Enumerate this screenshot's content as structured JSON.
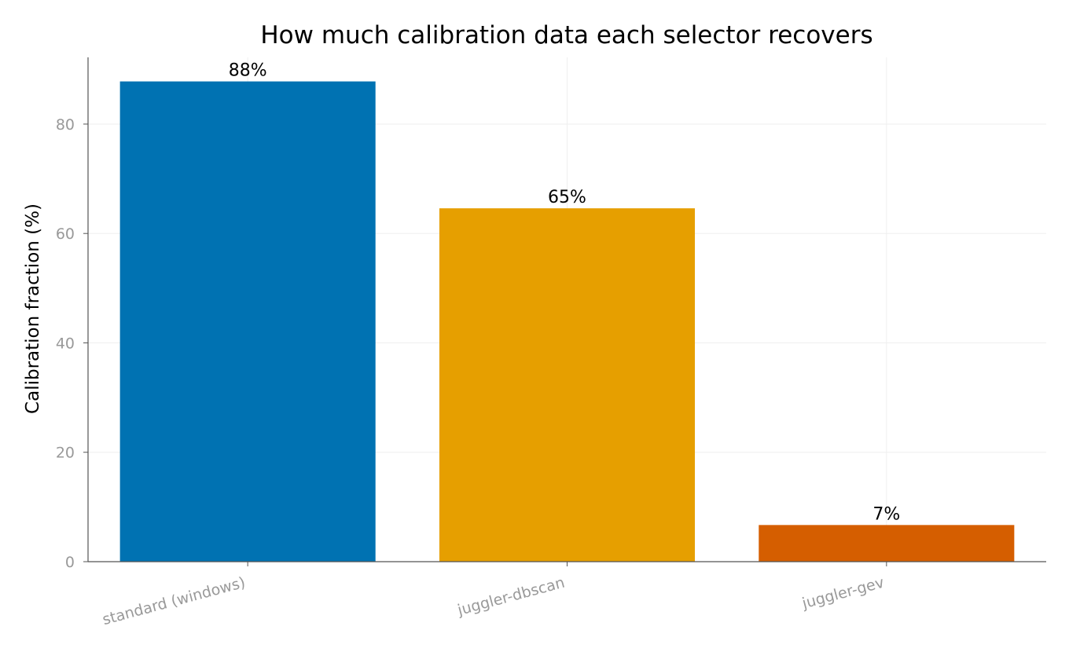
{
  "chart_data": {
    "type": "bar",
    "title": "How much calibration data each selector recovers",
    "xlabel": "",
    "ylabel": "Calibration fraction (%)",
    "categories": [
      "standard (windows)",
      "juggler-dbscan",
      "juggler-gev"
    ],
    "values": [
      87.8,
      64.6,
      6.7
    ],
    "data_labels": [
      "88%",
      "65%",
      "7%"
    ],
    "colors": [
      "#0072b2",
      "#e69f00",
      "#d55e00"
    ],
    "ylim": [
      0,
      92.2
    ],
    "yticks": [
      0,
      20,
      40,
      60,
      80
    ],
    "ytick_labels": [
      "0",
      "20",
      "40",
      "60",
      "80"
    ],
    "grid": true,
    "legend": "none"
  }
}
